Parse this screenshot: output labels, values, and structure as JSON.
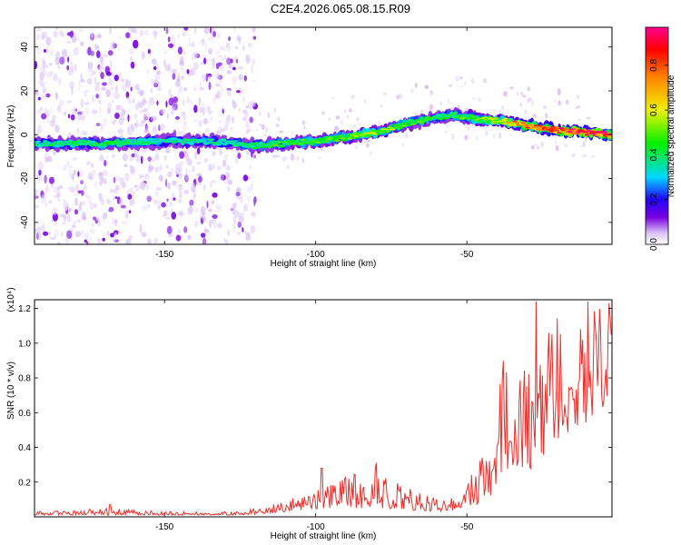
{
  "figure_title": "C2E4.2026.065.08.15.R09",
  "colors": {
    "axis": "#000000",
    "snr_line": "#e8302c",
    "colormap": [
      "#ffffff",
      "#d9c2f5",
      "#7a00e0",
      "#2200ff",
      "#00d8ff",
      "#00f000",
      "#f0f000",
      "#ff8000",
      "#ff0000",
      "#ff0090"
    ]
  },
  "chart_data": [
    {
      "type": "heatmap",
      "name": "spectrogram",
      "title": "C2E4.2026.065.08.15.R09",
      "xlabel": "Height of straight line (km)",
      "ylabel": "Frequency (Hz)",
      "xlim": [
        -193,
        -2
      ],
      "ylim": [
        -50,
        49
      ],
      "xticks": [
        -150,
        -100,
        -50
      ],
      "xtick_labels": [
        "-150",
        "-100",
        "-50"
      ],
      "yticks": [
        -40,
        -20,
        0,
        20,
        40
      ],
      "ytick_labels": [
        "-40",
        "-20",
        "0",
        "20",
        "40"
      ],
      "colorbar": {
        "label": "Normalized spectral amplitude",
        "range": [
          0,
          0.97
        ],
        "ticks": [
          0,
          0.2,
          0.4,
          0.6,
          0.8
        ],
        "tick_labels": [
          "0.0",
          "0.2",
          "0.4",
          "0.6",
          "0.8"
        ]
      },
      "ridge": {
        "x": [
          -193,
          -170,
          -150,
          -135,
          -125,
          -120,
          -100,
          -80,
          -70,
          -55,
          -45,
          -38,
          -30,
          -20,
          -10,
          -2
        ],
        "y": [
          -4,
          -4,
          -3,
          -3,
          -4,
          -5,
          -3,
          1,
          5,
          9,
          7,
          6,
          4,
          2,
          1,
          0
        ],
        "amplitude": [
          0.4,
          0.45,
          0.4,
          0.38,
          0.42,
          0.45,
          0.5,
          0.58,
          0.5,
          0.45,
          0.55,
          0.65,
          0.8,
          0.92,
          0.95,
          0.9
        ]
      },
      "noise_region_x": [
        -193,
        -120
      ]
    },
    {
      "type": "line",
      "name": "snr",
      "xlabel": "Height of straight line (km)",
      "ylabel": "SNR (10 * v/v)",
      "y_multiplier": "(x10⁴)",
      "xlim": [
        -193,
        -2
      ],
      "ylim": [
        0,
        1.25
      ],
      "xticks": [
        -150,
        -100,
        -50
      ],
      "xtick_labels": [
        "-150",
        "-100",
        "-50"
      ],
      "yticks": [
        0.2,
        0.4,
        0.6,
        0.8,
        1.0,
        1.2
      ],
      "ytick_labels": [
        "0.2",
        "0.4",
        "0.6",
        "0.8",
        "1.0",
        "1.2"
      ],
      "envelope": {
        "x": [
          -193,
          -170,
          -150,
          -125,
          -115,
          -105,
          -95,
          -85,
          -78,
          -70,
          -60,
          -52,
          -47,
          -42,
          -38,
          -35,
          -30,
          -25,
          -20,
          -15,
          -10,
          -5,
          -2
        ],
        "base": [
          0.01,
          0.01,
          0.01,
          0.01,
          0.02,
          0.04,
          0.05,
          0.05,
          0.05,
          0.04,
          0.03,
          0.04,
          0.06,
          0.1,
          0.25,
          0.3,
          0.25,
          0.3,
          0.45,
          0.5,
          0.55,
          0.62,
          0.7
        ],
        "peak": [
          0.03,
          0.05,
          0.03,
          0.03,
          0.07,
          0.12,
          0.2,
          0.27,
          0.3,
          0.18,
          0.12,
          0.1,
          0.3,
          0.55,
          0.95,
          0.9,
          0.85,
          0.95,
          1.24,
          1.1,
          1.2,
          1.24,
          1.15
        ]
      },
      "peaks": [
        {
          "x": -168,
          "y": 0.07
        },
        {
          "x": -98,
          "y": 0.28
        },
        {
          "x": -80,
          "y": 0.31
        },
        {
          "x": -27,
          "y": 1.24
        },
        {
          "x": -22,
          "y": 1.05
        },
        {
          "x": -10,
          "y": 1.24
        },
        {
          "x": -3,
          "y": 1.23
        }
      ]
    }
  ]
}
